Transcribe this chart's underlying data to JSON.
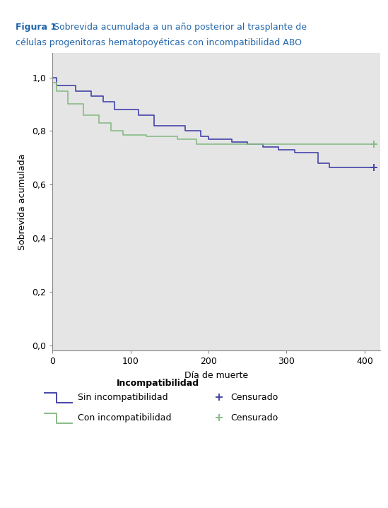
{
  "title_bold": "Figura 1",
  "title_rest_line1": " Sobrevida acumulada a un año posterior al trasplante de",
  "title_line2": "células progenitoras hematopoyéticas con incompatibilidad ABO",
  "xlabel": "Día de muerte",
  "ylabel": "Sobrevida acumulada",
  "xlim": [
    0,
    420
  ],
  "ylim": [
    -0.02,
    1.09
  ],
  "xticks": [
    0,
    100,
    200,
    300,
    400
  ],
  "yticks": [
    0.0,
    0.2,
    0.4,
    0.6,
    0.8,
    1.0
  ],
  "ytick_labels": [
    "0,0",
    "0,2",
    "0,4",
    "0,6",
    "0,8",
    "1,0"
  ],
  "bg_color": "#e5e5e5",
  "fig_bg": "#ffffff",
  "blue_color": "#4444aa",
  "green_color": "#88bb88",
  "legend_title": "Incompatibilidad",
  "legend_item1": "Sin incompatibilidad",
  "legend_item2": "Con incompatibilidad",
  "legend_censor": "Censurado",
  "blue_km_x": [
    0,
    5,
    5,
    30,
    30,
    50,
    50,
    65,
    65,
    80,
    80,
    110,
    110,
    130,
    130,
    170,
    170,
    190,
    190,
    200,
    200,
    230,
    230,
    250,
    250,
    270,
    270,
    290,
    290,
    310,
    310,
    340,
    340,
    355,
    355,
    412
  ],
  "blue_km_y": [
    1.0,
    1.0,
    0.97,
    0.97,
    0.95,
    0.95,
    0.93,
    0.93,
    0.91,
    0.91,
    0.88,
    0.88,
    0.86,
    0.86,
    0.82,
    0.82,
    0.8,
    0.8,
    0.78,
    0.78,
    0.77,
    0.77,
    0.76,
    0.76,
    0.75,
    0.75,
    0.74,
    0.74,
    0.73,
    0.73,
    0.72,
    0.72,
    0.68,
    0.68,
    0.665,
    0.665
  ],
  "green_km_x": [
    0,
    5,
    5,
    20,
    20,
    40,
    40,
    60,
    60,
    75,
    75,
    90,
    90,
    120,
    120,
    160,
    160,
    185,
    185,
    412
  ],
  "green_km_y": [
    0.98,
    0.98,
    0.95,
    0.95,
    0.9,
    0.9,
    0.86,
    0.86,
    0.83,
    0.83,
    0.8,
    0.8,
    0.785,
    0.785,
    0.78,
    0.78,
    0.77,
    0.77,
    0.75,
    0.75
  ],
  "blue_censor_x": [
    412
  ],
  "blue_censor_y": [
    0.665
  ],
  "green_censor_x": [
    412
  ],
  "green_censor_y": [
    0.75
  ],
  "title_color": "#2266aa",
  "text_color": "#000000"
}
